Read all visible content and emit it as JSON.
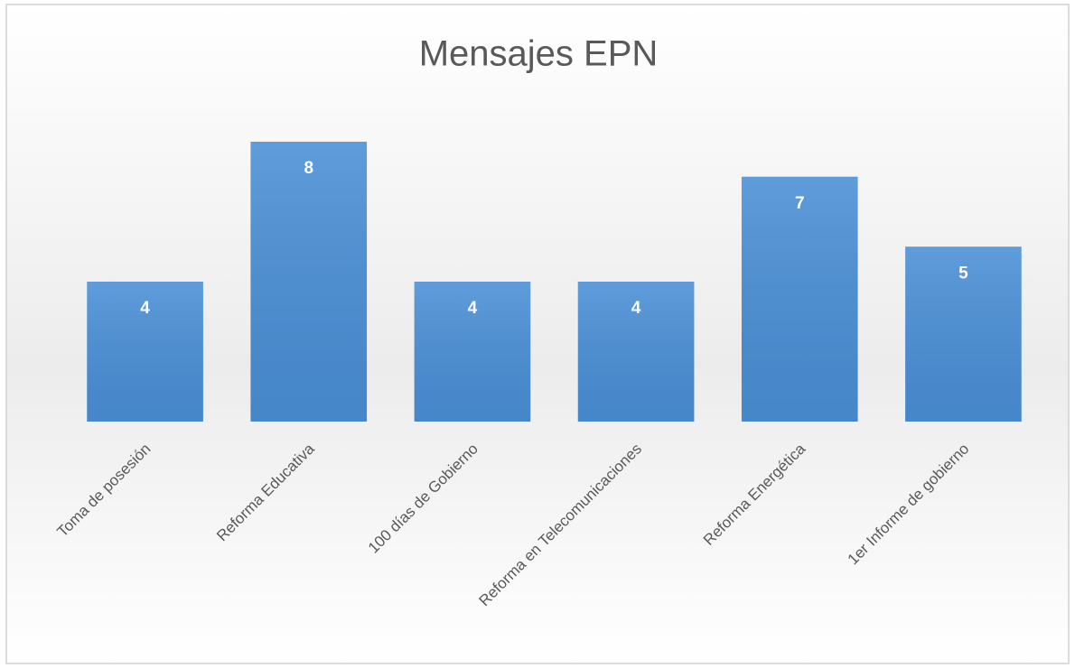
{
  "chart_data": {
    "type": "bar",
    "title": "Mensajes EPN",
    "categories": [
      "Toma de posesión",
      "Reforma Educativa",
      "100 días de Gobierno",
      "Reforma en Telecomunicaciones",
      "Reforma Energética",
      "1er Informe de gobierno"
    ],
    "values": [
      4,
      8,
      4,
      4,
      7,
      5
    ],
    "color": "#4a8fd6",
    "ylim": [
      0,
      8
    ]
  }
}
